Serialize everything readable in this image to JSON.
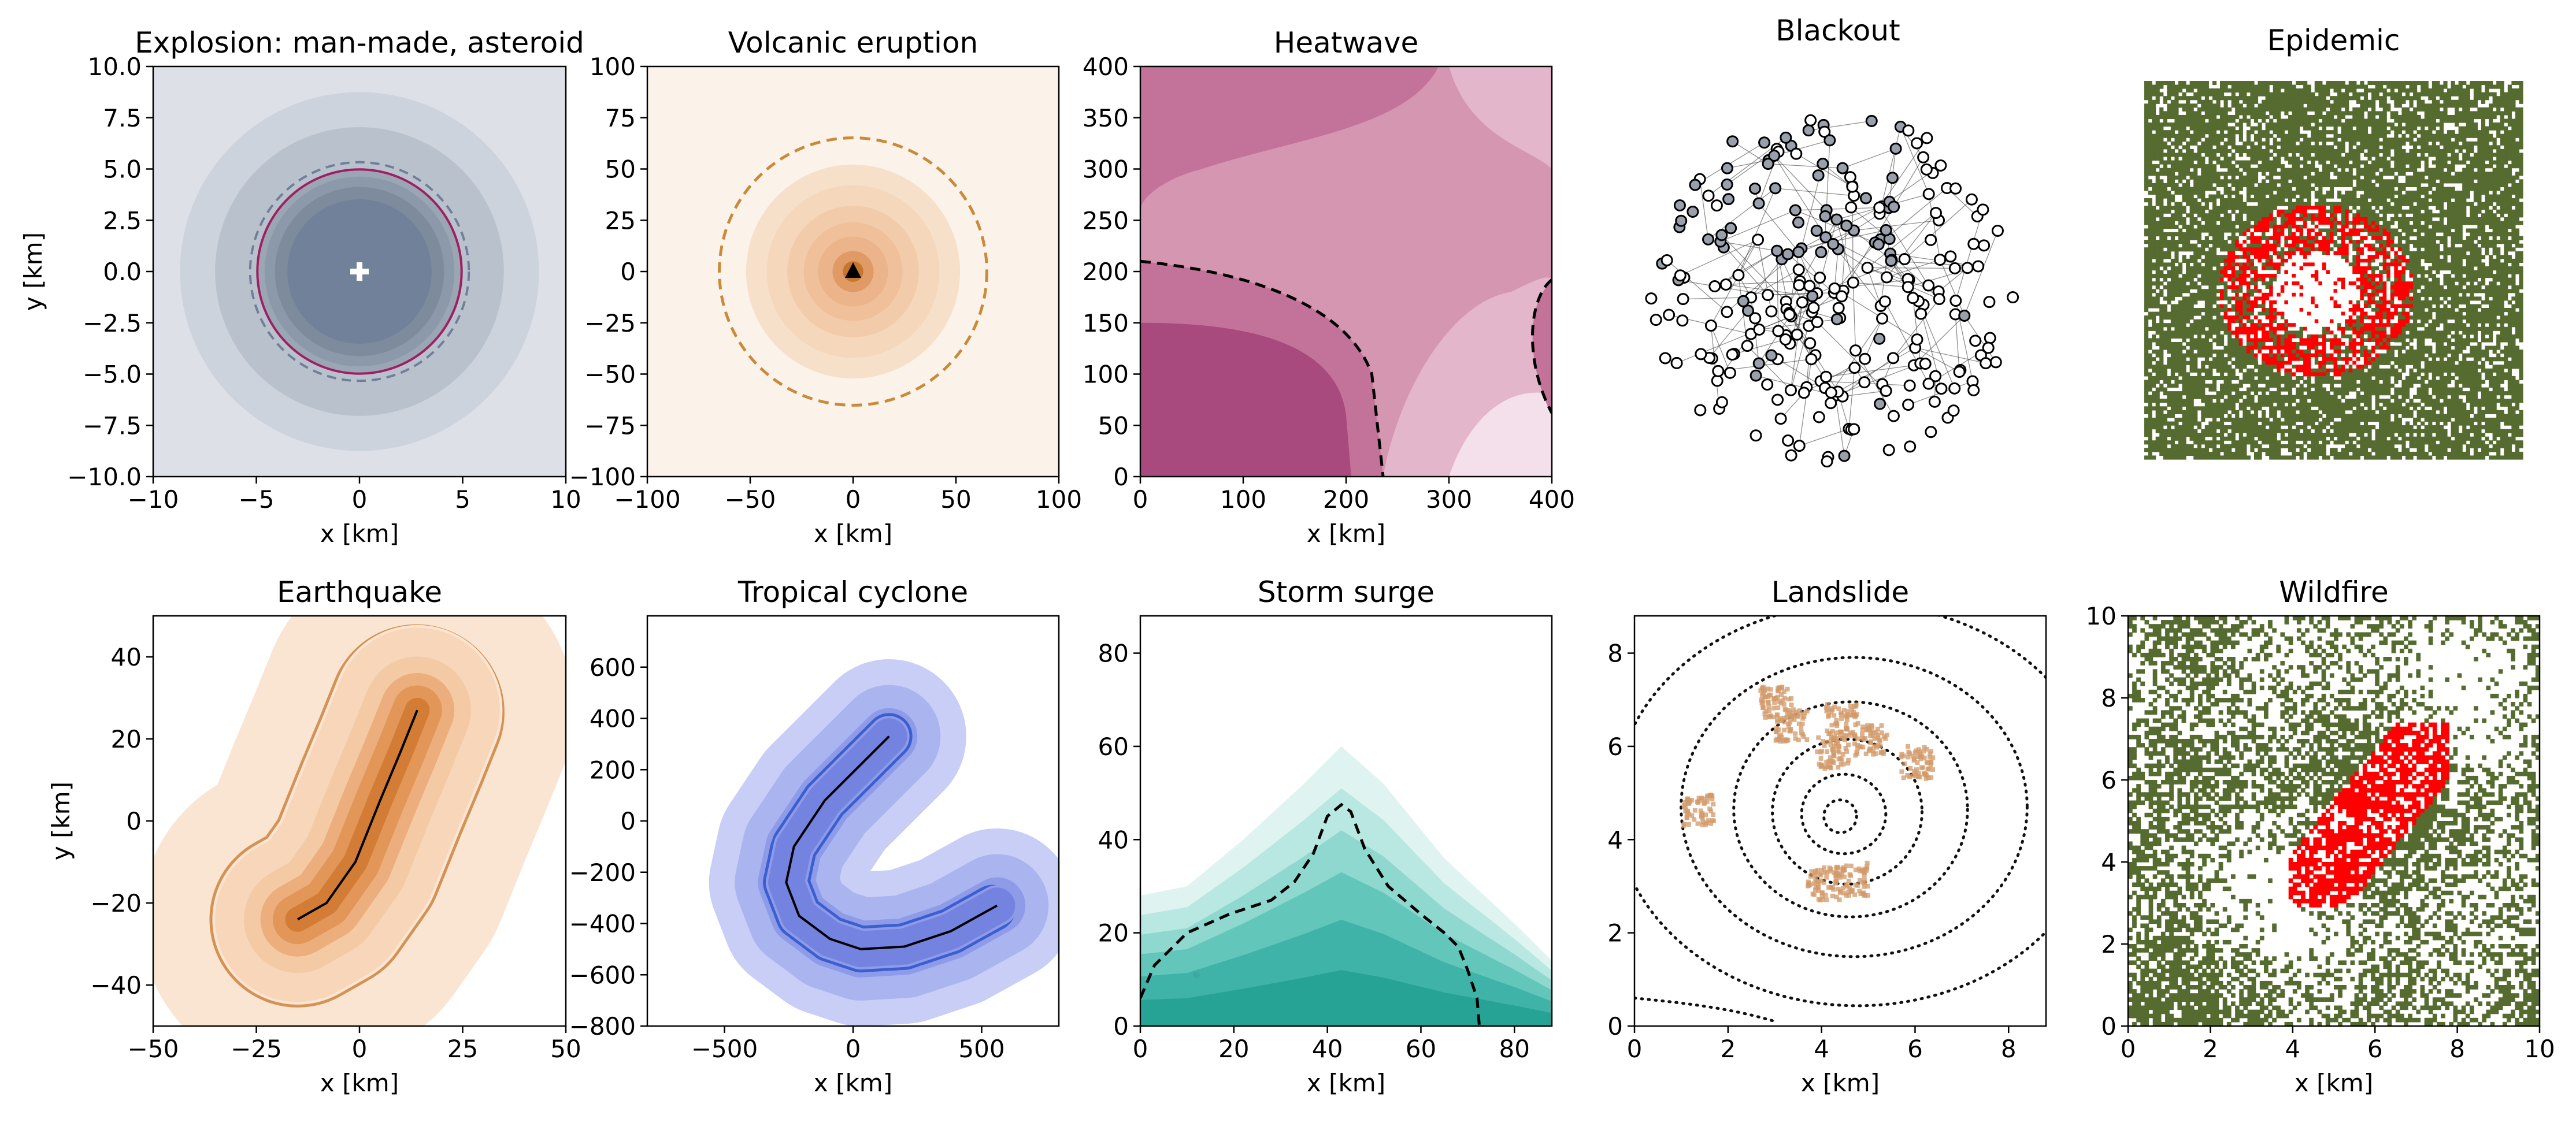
{
  "figure": {
    "background": "#ffffff"
  },
  "chart_data": [
    {
      "id": "explosion",
      "type": "contour",
      "title": "Explosion: man-made, asteroid",
      "xlabel": "x [km]",
      "ylabel": "y [km]",
      "xlim": [
        -10,
        10
      ],
      "ylim": [
        -10,
        10
      ],
      "xticks": [
        "−10",
        "−5",
        "0",
        "5",
        "10"
      ],
      "yticks": [
        "−10.0",
        "−7.5",
        "−5.0",
        "−2.5",
        "0.0",
        "2.5",
        "5.0",
        "7.5",
        "10.0"
      ],
      "colormap": [
        "#dde1e7",
        "#b9c1cd",
        "#9aa6b4",
        "#7d8b9c",
        "#66768a"
      ],
      "center": [
        0,
        0
      ],
      "rings_km": [
        10,
        8.7,
        7.0,
        5.0,
        4.6,
        4.1,
        3.5
      ],
      "outer_fill_km": 10,
      "circle_solid_km": 4.95,
      "circle_dashed_km": 5.3,
      "circle_solid_color": "#9e1f63",
      "circle_dashed_color": "#6f7f99",
      "marker": "plus"
    },
    {
      "id": "volcano",
      "type": "contour",
      "title": "Volcanic eruption",
      "xlabel": "x [km]",
      "ylabel": "",
      "xlim": [
        -100,
        100
      ],
      "ylim": [
        -100,
        100
      ],
      "xticks": [
        "−100",
        "−50",
        "0",
        "50",
        "100"
      ],
      "yticks": [
        "−100",
        "−75",
        "−50",
        "−25",
        "0",
        "25",
        "50",
        "75",
        "100"
      ],
      "colormap": [
        "#fbf3ea",
        "#f7e0c9",
        "#f2ccaa",
        "#ebb48a",
        "#e09a66",
        "#c77630"
      ],
      "center": [
        0,
        0
      ],
      "rings_km": [
        52,
        42,
        32,
        24,
        17,
        10,
        5
      ],
      "circle_dashed_km": 65,
      "circle_dashed_color": "#c98a3a",
      "marker": "triangle"
    },
    {
      "id": "heatwave",
      "type": "contour",
      "title": "Heatwave",
      "xlabel": "x [km]",
      "ylabel": "",
      "xlim": [
        0,
        400
      ],
      "ylim": [
        0,
        400
      ],
      "xticks": [
        "0",
        "100",
        "200",
        "300",
        "400"
      ],
      "yticks": [
        "0",
        "50",
        "100",
        "150",
        "200",
        "250",
        "300",
        "350",
        "400"
      ],
      "colormap": [
        "#f3e0ea",
        "#e4b6cb",
        "#d596b2",
        "#c3739a",
        "#a84a7d"
      ],
      "threshold_line_color": "#000000"
    },
    {
      "id": "blackout",
      "type": "network",
      "title": "Blackout",
      "node_count": 260,
      "failed_fraction": 0.28,
      "node_color_failed": "#9aa0ab",
      "node_color_ok": "#ffffff",
      "edge_color": "#444444"
    },
    {
      "id": "epidemic",
      "type": "grid",
      "title": "Epidemic",
      "colors": {
        "healthy": "#556b2f",
        "empty": "#ffffff",
        "infected": "#ff0000"
      },
      "grid_size": 100
    },
    {
      "id": "earthquake",
      "type": "contour",
      "title": "Earthquake",
      "xlabel": "x [km]",
      "ylabel": "y [km]",
      "xlim": [
        -50,
        50
      ],
      "ylim": [
        -50,
        50
      ],
      "xticks": [
        "−50",
        "−25",
        "0",
        "25",
        "50"
      ],
      "yticks": [
        "−40",
        "−20",
        "0",
        "20",
        "40"
      ],
      "colormap": [
        "#fae5d3",
        "#f4caa5",
        "#ecae7c",
        "#e29658",
        "#d27c35"
      ],
      "fault_trace": [
        [
          -15,
          -24
        ],
        [
          -8,
          -20
        ],
        [
          -1,
          -10
        ],
        [
          5,
          5
        ],
        [
          10,
          17
        ],
        [
          14,
          27
        ]
      ],
      "buffers_km": [
        38,
        20,
        13,
        9,
        6,
        3
      ],
      "dashed_buffer_km": 21,
      "dashed_color": "#d08a48"
    },
    {
      "id": "cyclone",
      "type": "contour",
      "title": "Tropical cyclone",
      "xlabel": "x [km]",
      "ylabel": "",
      "xlim": [
        -800,
        800
      ],
      "ylim": [
        -800,
        800
      ],
      "xticks": [
        "−500",
        "0",
        "500"
      ],
      "yticks": [
        "−800",
        "−600",
        "−400",
        "−200",
        "0",
        "200",
        "400",
        "600"
      ],
      "colormap": [
        "#c8cef5",
        "#aab5f0",
        "#8e9be8",
        "#7383df"
      ],
      "track": [
        [
          140,
          330
        ],
        [
          40,
          230
        ],
        [
          -110,
          80
        ],
        [
          -230,
          -100
        ],
        [
          -260,
          -240
        ],
        [
          -210,
          -370
        ],
        [
          -90,
          -460
        ],
        [
          30,
          -500
        ],
        [
          200,
          -490
        ],
        [
          380,
          -430
        ],
        [
          560,
          -330
        ]
      ],
      "buffers_km": [
        300,
        200,
        110,
        70,
        40
      ],
      "dashed_buffer_km": 85,
      "dashed_color": "#3b5fd0"
    },
    {
      "id": "stormsurge",
      "type": "contour",
      "title": "Storm surge",
      "xlabel": "x [km]",
      "ylabel": "",
      "xlim": [
        0,
        88
      ],
      "ylim": [
        0,
        88
      ],
      "xticks": [
        "0",
        "20",
        "40",
        "60",
        "80"
      ],
      "yticks": [
        "0",
        "20",
        "40",
        "60",
        "80"
      ],
      "colormap": [
        "#dff4f1",
        "#b8e8e1",
        "#8fd8cf",
        "#63c6bb",
        "#3fb3a8",
        "#27a396"
      ],
      "threshold_line": [
        [
          0,
          6
        ],
        [
          3,
          13
        ],
        [
          10,
          20
        ],
        [
          19,
          24
        ],
        [
          28,
          27
        ],
        [
          33,
          31
        ],
        [
          37,
          37
        ],
        [
          40,
          45
        ],
        [
          43,
          47.5
        ],
        [
          45,
          46
        ],
        [
          48,
          38
        ],
        [
          53,
          30
        ],
        [
          60,
          24
        ],
        [
          65,
          20
        ],
        [
          68,
          17
        ],
        [
          70,
          12
        ],
        [
          72,
          6
        ],
        [
          72.5,
          0
        ]
      ],
      "threshold_line_color": "#000000"
    },
    {
      "id": "landslide",
      "type": "contour",
      "title": "Landslide",
      "xlabel": "x [km]",
      "ylabel": "",
      "xlim": [
        0,
        8.8
      ],
      "ylim": [
        0,
        8.8
      ],
      "xticks": [
        "0",
        "2",
        "4",
        "6",
        "8"
      ],
      "yticks": [
        "0",
        "2",
        "4",
        "6",
        "8"
      ],
      "center": [
        4.4,
        4.5
      ],
      "dotted_contour_color": "#111111",
      "slide_color": "#d29a6a"
    },
    {
      "id": "wildfire",
      "type": "grid",
      "title": "Wildfire",
      "xlabel": "x [km]",
      "ylabel": "",
      "xlim": [
        0,
        10
      ],
      "ylim": [
        0,
        10
      ],
      "xticks": [
        "0",
        "2",
        "4",
        "6",
        "8",
        "10"
      ],
      "yticks": [
        "0",
        "2",
        "4",
        "6",
        "8",
        "10"
      ],
      "colors": {
        "vegetation": "#556b2f",
        "empty": "#ffffff",
        "burning": "#ff0000"
      },
      "grid_size": 100
    }
  ]
}
